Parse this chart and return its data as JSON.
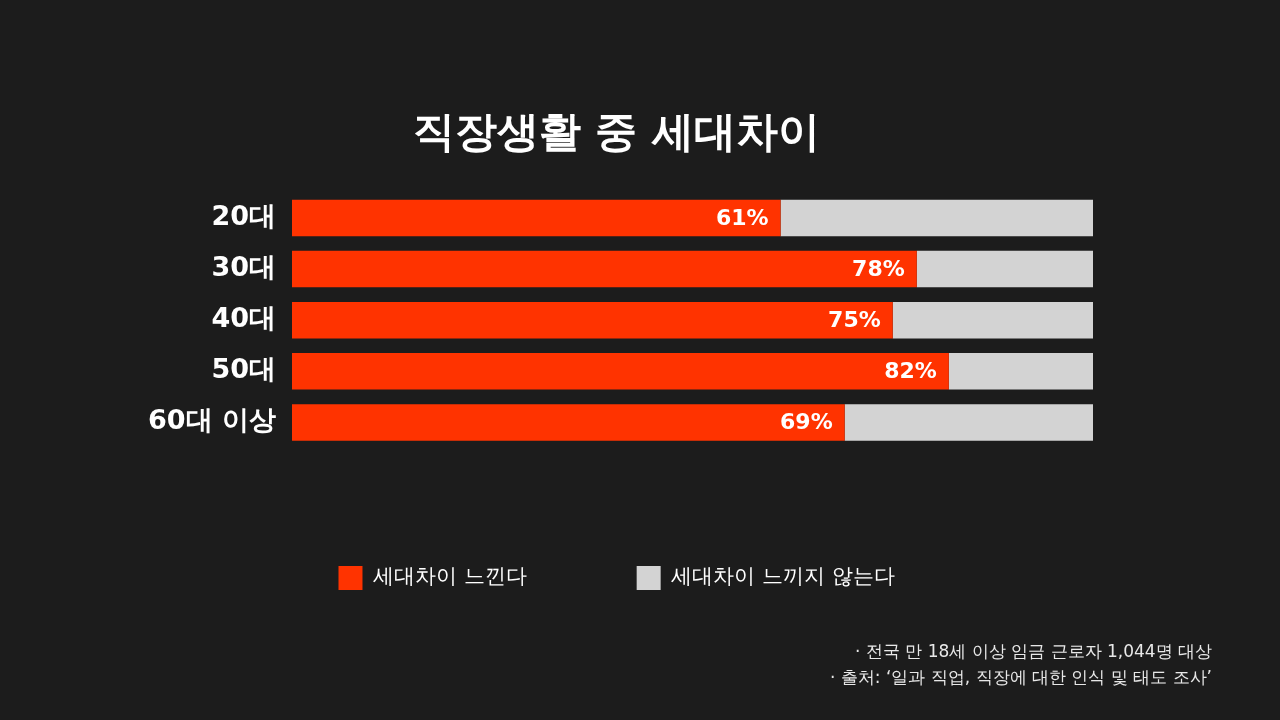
{
  "chart_data": {
    "type": "bar",
    "orientation": "horizontal",
    "stacked": true,
    "title": "직장생활 중 세대차이",
    "categories": [
      "20대",
      "30대",
      "40대",
      "50대",
      "60대 이상"
    ],
    "series": [
      {
        "name": "세대차이 느낀다",
        "color": "#ff3300",
        "values": [
          61,
          78,
          75,
          82,
          69
        ],
        "value_labels": [
          "61%",
          "78%",
          "75%",
          "82%",
          "69%"
        ]
      },
      {
        "name": "세대차이 느끼지 않는다",
        "color": "#d3d3d3",
        "values": [
          39,
          22,
          25,
          18,
          31
        ]
      }
    ],
    "xlim": [
      0,
      100
    ],
    "tick_labels": "y",
    "grid": false,
    "legend": "bottom",
    "annotations": [
      "· 전국 만 18세 이상 임금 근로자 1,044명 대상",
      "· 출처: ‘일과 직업, 직장에 대한 인식 및 태도 조사’"
    ]
  }
}
